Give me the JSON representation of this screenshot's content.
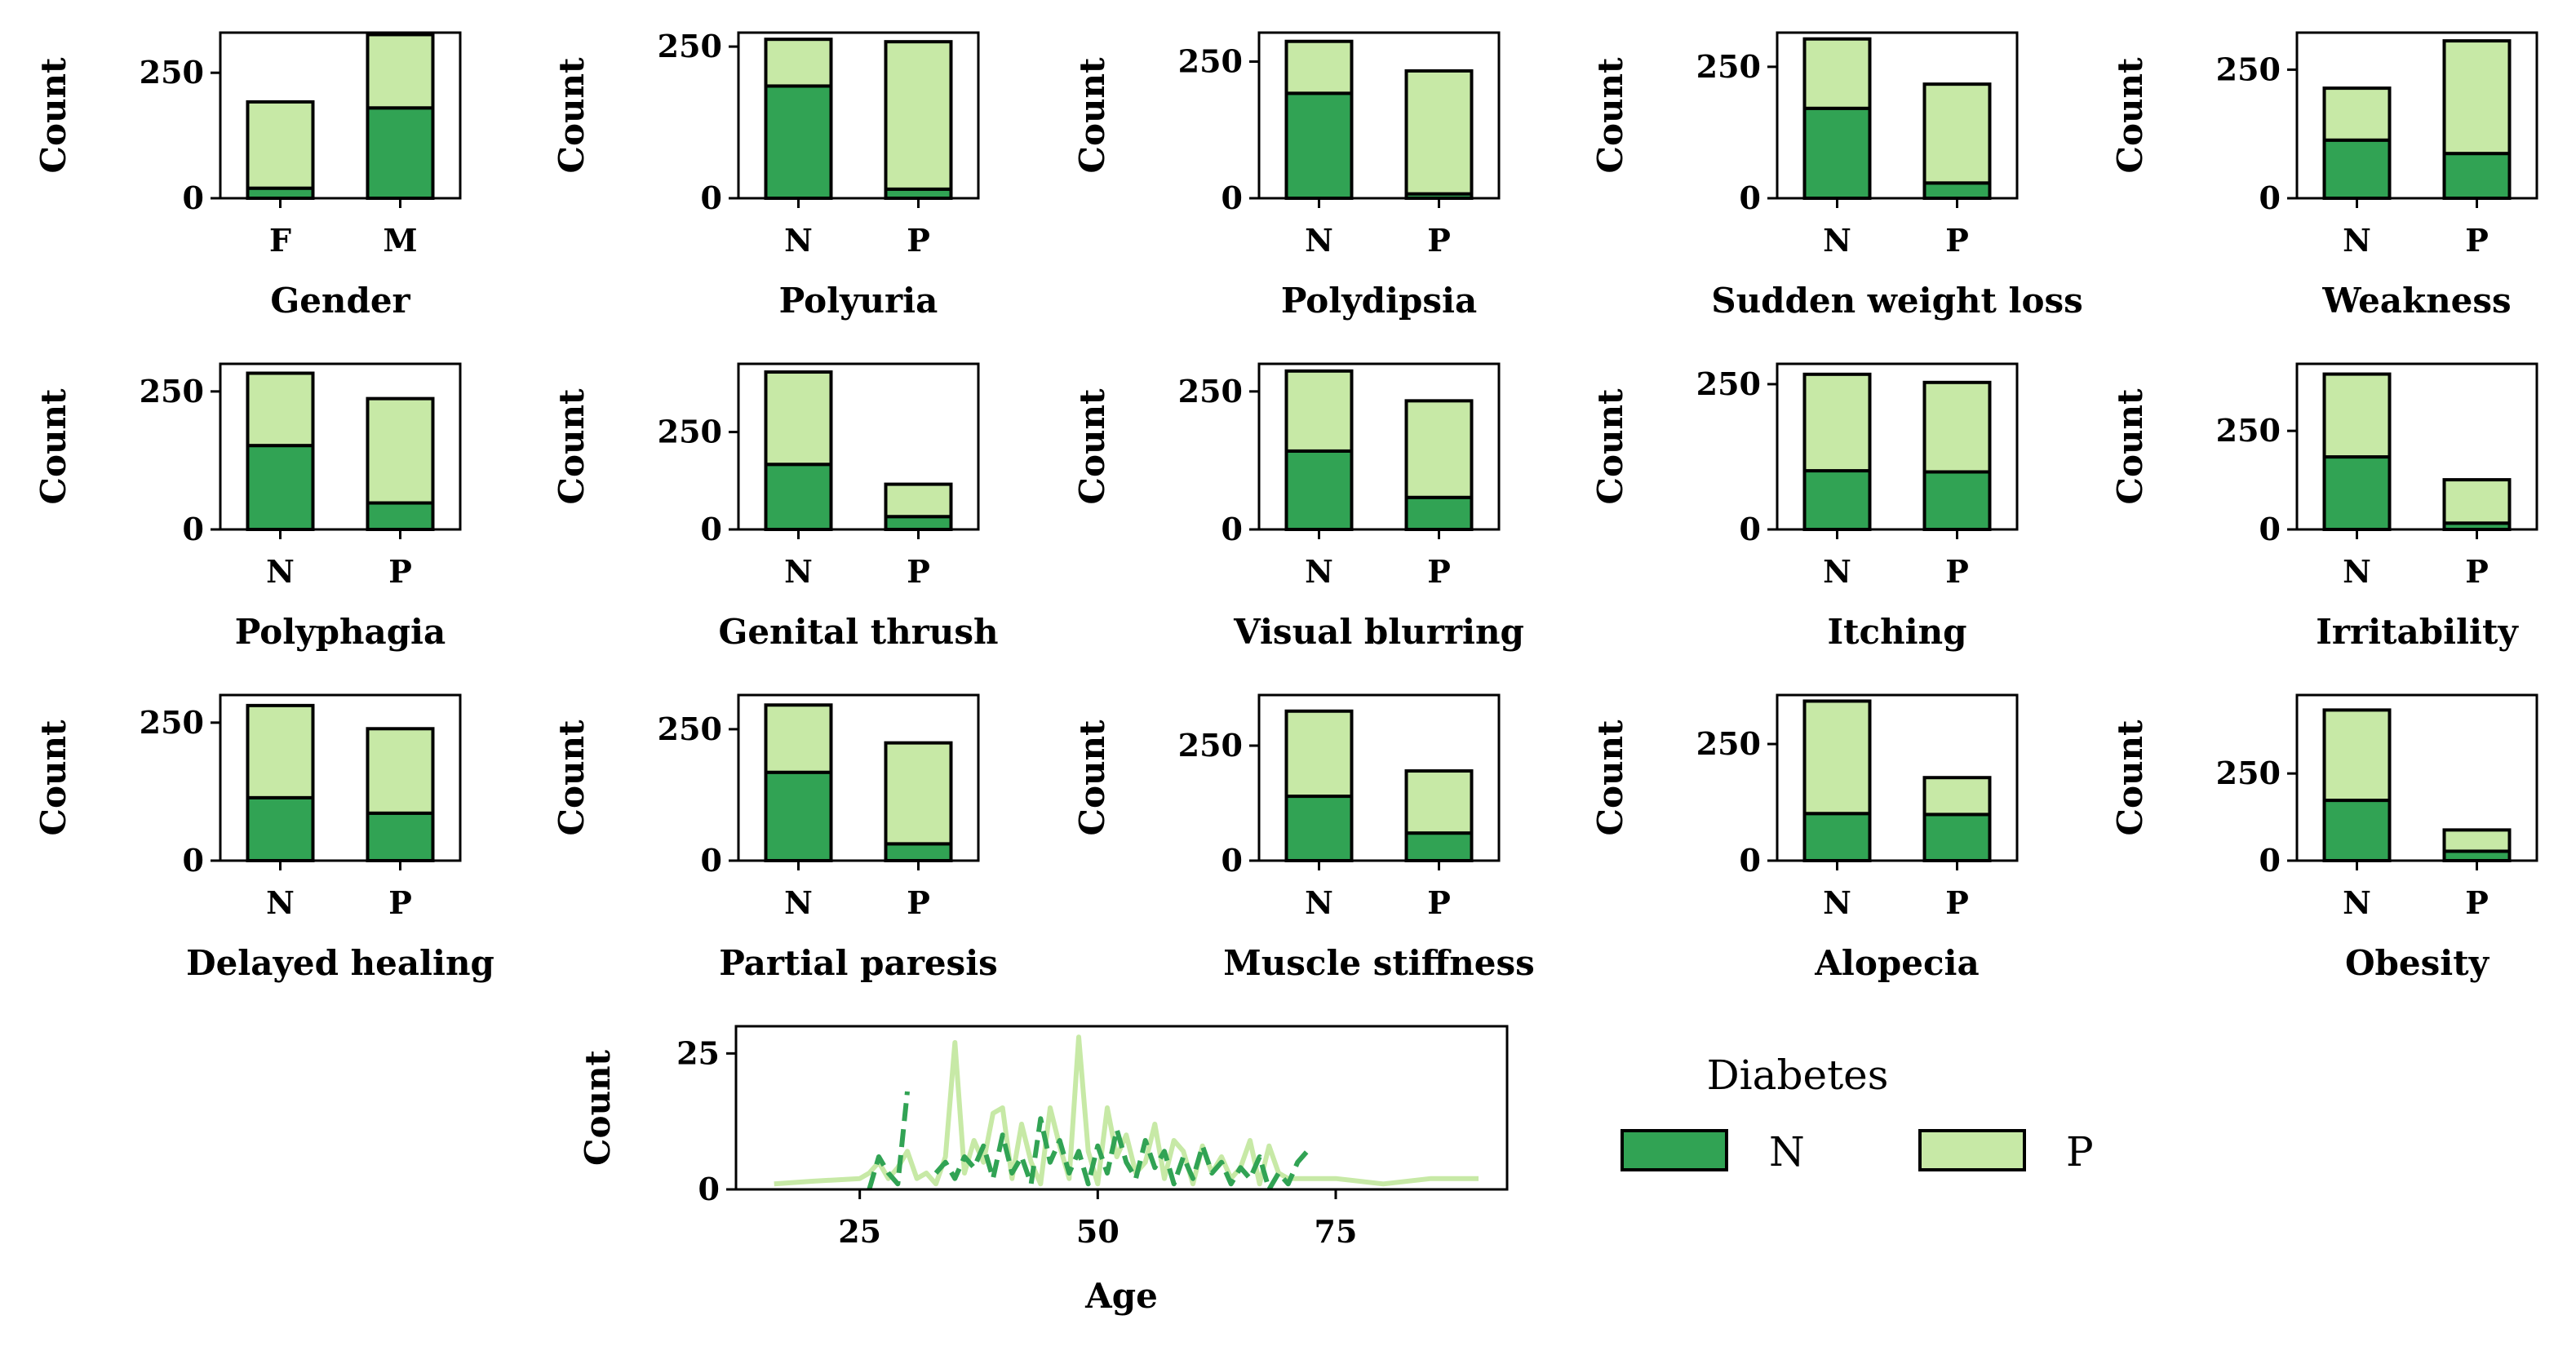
{
  "colors": {
    "N": "#31a354",
    "P": "#c7e9a6",
    "edge": "#000000"
  },
  "legend": {
    "title": "Diabetes",
    "entries": [
      "N",
      "P"
    ]
  },
  "chart_data": [
    {
      "type": "bar",
      "stacked": true,
      "xlabel": "Gender",
      "ylabel": "Count",
      "categories": [
        "F",
        "M"
      ],
      "ylim": [
        0,
        330
      ],
      "yticks": [
        0,
        250
      ],
      "series": [
        {
          "name": "N",
          "values": [
            20,
            180
          ]
        },
        {
          "name": "P",
          "values": [
            172,
            146
          ]
        }
      ]
    },
    {
      "type": "bar",
      "stacked": true,
      "xlabel": "Polyuria",
      "ylabel": "Count",
      "categories": [
        "N",
        "P"
      ],
      "ylim": [
        0,
        273
      ],
      "yticks": [
        0,
        250
      ],
      "series": [
        {
          "name": "N",
          "values": [
            185,
            15
          ]
        },
        {
          "name": "P",
          "values": [
            77,
            243
          ]
        }
      ]
    },
    {
      "type": "bar",
      "stacked": true,
      "xlabel": "Polydipsia",
      "ylabel": "Count",
      "categories": [
        "N",
        "P"
      ],
      "ylim": [
        0,
        303
      ],
      "yticks": [
        0,
        250
      ],
      "series": [
        {
          "name": "N",
          "values": [
            192,
            8
          ]
        },
        {
          "name": "P",
          "values": [
            95,
            225
          ]
        }
      ]
    },
    {
      "type": "bar",
      "stacked": true,
      "xlabel": "Sudden weight loss",
      "ylabel": "Count",
      "categories": [
        "N",
        "P"
      ],
      "ylim": [
        0,
        315
      ],
      "yticks": [
        0,
        250
      ],
      "series": [
        {
          "name": "N",
          "values": [
            171,
            29
          ]
        },
        {
          "name": "P",
          "values": [
            132,
            188
          ]
        }
      ]
    },
    {
      "type": "bar",
      "stacked": true,
      "xlabel": "Weakness",
      "ylabel": "Count",
      "categories": [
        "N",
        "P"
      ],
      "ylim": [
        0,
        322
      ],
      "yticks": [
        0,
        250
      ],
      "series": [
        {
          "name": "N",
          "values": [
            113,
            87
          ]
        },
        {
          "name": "P",
          "values": [
            101,
            219
          ]
        }
      ]
    },
    {
      "type": "bar",
      "stacked": true,
      "xlabel": "Polyphagia",
      "ylabel": "Count",
      "categories": [
        "N",
        "P"
      ],
      "ylim": [
        0,
        300
      ],
      "yticks": [
        0,
        250
      ],
      "series": [
        {
          "name": "N",
          "values": [
            152,
            48
          ]
        },
        {
          "name": "P",
          "values": [
            131,
            189
          ]
        }
      ]
    },
    {
      "type": "bar",
      "stacked": true,
      "xlabel": "Genital thrush",
      "ylabel": "Count",
      "categories": [
        "N",
        "P"
      ],
      "ylim": [
        0,
        425
      ],
      "yticks": [
        0,
        250
      ],
      "series": [
        {
          "name": "N",
          "values": [
            167,
            33
          ]
        },
        {
          "name": "P",
          "values": [
            237,
            83
          ]
        }
      ]
    },
    {
      "type": "bar",
      "stacked": true,
      "xlabel": "Visual blurring",
      "ylabel": "Count",
      "categories": [
        "N",
        "P"
      ],
      "ylim": [
        0,
        300
      ],
      "yticks": [
        0,
        250
      ],
      "series": [
        {
          "name": "N",
          "values": [
            142,
            58
          ]
        },
        {
          "name": "P",
          "values": [
            145,
            175
          ]
        }
      ]
    },
    {
      "type": "bar",
      "stacked": true,
      "xlabel": "Itching",
      "ylabel": "Count",
      "categories": [
        "N",
        "P"
      ],
      "ylim": [
        0,
        285
      ],
      "yticks": [
        0,
        250
      ],
      "series": [
        {
          "name": "N",
          "values": [
            101,
            99
          ]
        },
        {
          "name": "P",
          "values": [
            166,
            154
          ]
        }
      ]
    },
    {
      "type": "bar",
      "stacked": true,
      "xlabel": "Irritability",
      "ylabel": "Count",
      "categories": [
        "N",
        "P"
      ],
      "ylim": [
        0,
        420
      ],
      "yticks": [
        0,
        250
      ],
      "series": [
        {
          "name": "N",
          "values": [
            184,
            16
          ]
        },
        {
          "name": "P",
          "values": [
            210,
            110
          ]
        }
      ]
    },
    {
      "type": "bar",
      "stacked": true,
      "xlabel": "Delayed healing",
      "ylabel": "Count",
      "categories": [
        "N",
        "P"
      ],
      "ylim": [
        0,
        300
      ],
      "yticks": [
        0,
        250
      ],
      "series": [
        {
          "name": "N",
          "values": [
            114,
            86
          ]
        },
        {
          "name": "P",
          "values": [
            167,
            153
          ]
        }
      ]
    },
    {
      "type": "bar",
      "stacked": true,
      "xlabel": "Partial paresis",
      "ylabel": "Count",
      "categories": [
        "N",
        "P"
      ],
      "ylim": [
        0,
        315
      ],
      "yticks": [
        0,
        250
      ],
      "series": [
        {
          "name": "N",
          "values": [
            168,
            32
          ]
        },
        {
          "name": "P",
          "values": [
            128,
            192
          ]
        }
      ]
    },
    {
      "type": "bar",
      "stacked": true,
      "xlabel": "Muscle stiffness",
      "ylabel": "Count",
      "categories": [
        "N",
        "P"
      ],
      "ylim": [
        0,
        360
      ],
      "yticks": [
        0,
        250
      ],
      "series": [
        {
          "name": "N",
          "values": [
            140,
            60
          ]
        },
        {
          "name": "P",
          "values": [
            185,
            135
          ]
        }
      ]
    },
    {
      "type": "bar",
      "stacked": true,
      "xlabel": "Alopecia",
      "ylabel": "Count",
      "categories": [
        "N",
        "P"
      ],
      "ylim": [
        0,
        355
      ],
      "yticks": [
        0,
        250
      ],
      "series": [
        {
          "name": "N",
          "values": [
            101,
            99
          ]
        },
        {
          "name": "P",
          "values": [
            241,
            79
          ]
        }
      ]
    },
    {
      "type": "bar",
      "stacked": true,
      "xlabel": "Obesity",
      "ylabel": "Count",
      "categories": [
        "N",
        "P"
      ],
      "ylim": [
        0,
        475
      ],
      "yticks": [
        0,
        250
      ],
      "series": [
        {
          "name": "N",
          "values": [
            173,
            27
          ]
        },
        {
          "name": "P",
          "values": [
            259,
            61
          ]
        }
      ]
    },
    {
      "type": "line",
      "xlabel": "Age",
      "ylabel": "Count",
      "xlim": [
        12,
        93
      ],
      "ylim": [
        0,
        30
      ],
      "xticks": [
        25,
        50,
        75
      ],
      "yticks": [
        0,
        25
      ],
      "series": [
        {
          "name": "N",
          "x": [
            26,
            27,
            28,
            29,
            30,
            null,
            33,
            34,
            35,
            36,
            37,
            38,
            39,
            40,
            41,
            42,
            43,
            44,
            45,
            46,
            47,
            48,
            49,
            50,
            51,
            52,
            53,
            54,
            55,
            56,
            57,
            58,
            59,
            60,
            61,
            62,
            63,
            64,
            65,
            66,
            67,
            68,
            69,
            70,
            71,
            72
          ],
          "y": [
            0,
            6,
            3,
            1,
            18,
            null,
            3,
            5,
            2,
            6,
            4,
            8,
            2,
            10,
            3,
            6,
            1,
            13,
            5,
            9,
            3,
            7,
            1,
            8,
            3,
            11,
            5,
            2,
            9,
            4,
            7,
            1,
            6,
            2,
            8,
            3,
            5,
            1,
            4,
            2,
            6,
            0,
            3,
            1,
            5,
            7
          ]
        },
        {
          "name": "P",
          "x": [
            16,
            20,
            25,
            26,
            27,
            28,
            29,
            30,
            31,
            32,
            33,
            34,
            35,
            36,
            37,
            38,
            39,
            40,
            41,
            42,
            43,
            44,
            45,
            46,
            47,
            48,
            49,
            50,
            51,
            52,
            53,
            54,
            55,
            56,
            57,
            58,
            59,
            60,
            61,
            62,
            63,
            64,
            65,
            66,
            67,
            68,
            69,
            70,
            72,
            75,
            80,
            85,
            90
          ],
          "y": [
            1,
            1.5,
            2,
            3,
            5,
            2,
            4,
            7,
            2,
            3,
            1,
            6,
            27,
            3,
            9,
            5,
            14,
            15,
            2,
            12,
            5,
            1,
            15,
            8,
            2,
            28,
            7,
            1,
            15,
            6,
            10,
            3,
            5,
            12,
            2,
            9,
            7,
            1,
            8,
            3,
            6,
            2,
            4,
            9,
            1,
            8,
            3,
            2,
            2,
            2,
            1,
            2,
            2
          ]
        }
      ]
    }
  ]
}
